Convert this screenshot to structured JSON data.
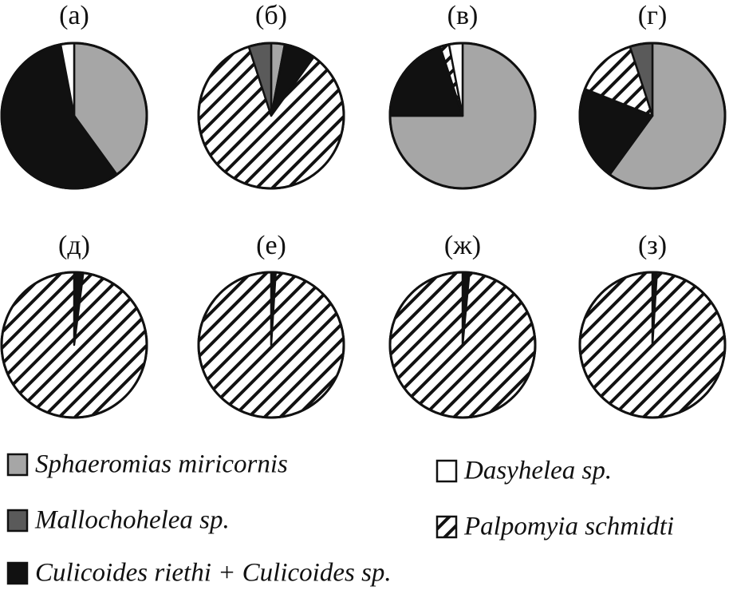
{
  "chart_data": {
    "type": "pie",
    "series": [
      {
        "name": "Sphaeromias miricornis",
        "color": "#a6a6a6"
      },
      {
        "name": "Mallochohelea sp.",
        "color": "#5a5a5a"
      },
      {
        "name": "Culicoides riethi + Culicoides sp.",
        "color": "#111111"
      },
      {
        "name": "Dasyhelea sp.",
        "color": "#ffffff"
      },
      {
        "name": "Palpomyia schmidti",
        "color": "hatch"
      }
    ],
    "pies": [
      {
        "title": "(а)",
        "values": [
          40,
          0,
          57,
          3,
          0
        ]
      },
      {
        "title": "(б)",
        "values": [
          3,
          5,
          7,
          0,
          85
        ]
      },
      {
        "title": "(в)",
        "values": [
          75,
          0,
          20,
          3,
          2
        ]
      },
      {
        "title": "(г)",
        "values": [
          60,
          5,
          21,
          0,
          14
        ]
      },
      {
        "title": "(д)",
        "values": [
          0,
          0,
          2,
          0,
          98
        ]
      },
      {
        "title": "(е)",
        "values": [
          0,
          0,
          1,
          0,
          99
        ]
      },
      {
        "title": "(ж)",
        "values": [
          0,
          0,
          1.5,
          0,
          98.5
        ]
      },
      {
        "title": "(з)",
        "values": [
          0,
          0,
          1,
          0,
          99
        ]
      }
    ]
  }
}
